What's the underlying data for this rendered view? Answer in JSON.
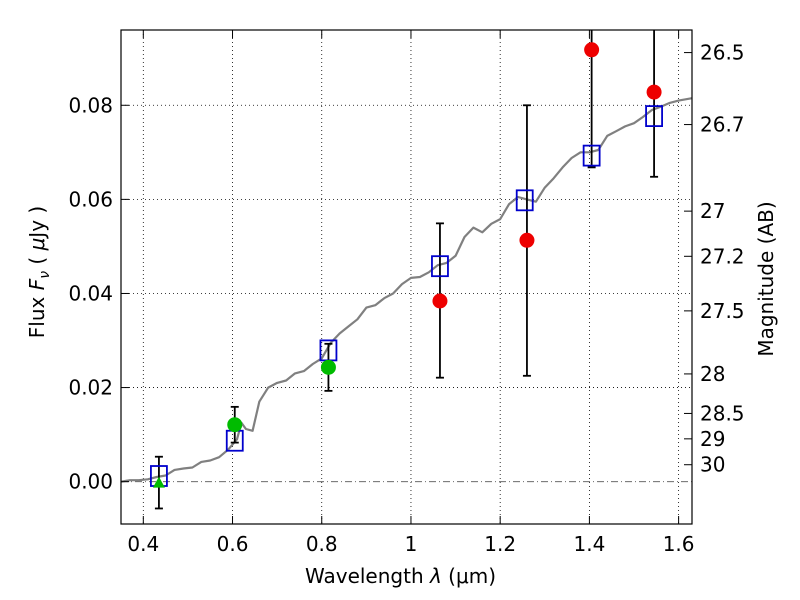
{
  "chart_data": {
    "type": "scatter",
    "xlabel": "Wavelength  λ (μm)",
    "xlabel_parts": {
      "prefix": "Wavelength  ",
      "symbol": "λ",
      "unit": " (μm)"
    },
    "ylabel": "Flux  F_ν  ( μJy )",
    "ylabel_parts": {
      "prefix": "Flux  ",
      "symbol": "F",
      "subscript": "ν",
      "open": "  ( ",
      "mu": "μ",
      "unit": "Jy )"
    },
    "y2label": "Magnitude (AB)",
    "xlim": [
      0.35,
      1.63
    ],
    "ylim": [
      -0.009,
      0.096
    ],
    "grid": true,
    "x_ticks": [
      0.4,
      0.6,
      0.8,
      1.0,
      1.2,
      1.4,
      1.6
    ],
    "x_tick_labels": [
      "0.4",
      "0.6",
      "0.8",
      "1",
      "1.2",
      "1.4",
      "1.6"
    ],
    "y_ticks": [
      0.0,
      0.02,
      0.04,
      0.06,
      0.08
    ],
    "y_tick_labels": [
      "0.00",
      "0.02",
      "0.04",
      "0.06",
      "0.08"
    ],
    "magnitude_ticks": [
      {
        "label": "26.5",
        "flux": 0.0912
      },
      {
        "label": "26.7",
        "flux": 0.0759
      },
      {
        "label": "27",
        "flux": 0.0575
      },
      {
        "label": "27.2",
        "flux": 0.0479
      },
      {
        "label": "27.5",
        "flux": 0.0363
      },
      {
        "label": "28",
        "flux": 0.0229
      },
      {
        "label": "28.5",
        "flux": 0.0145
      },
      {
        "label": "29",
        "flux": 0.0091
      },
      {
        "label": "30",
        "flux": 0.0036
      }
    ],
    "colors": {
      "model": "#808080",
      "model_photometry": "#0000cc",
      "observed_optical": "#00bb00",
      "observed_nir": "#ee0000",
      "errorbar": "#000000",
      "zero_line": "#555555"
    },
    "series": [
      {
        "name": "model spectrum",
        "kind": "line",
        "x": [
          0.35,
          0.37,
          0.39,
          0.41,
          0.43,
          0.45,
          0.47,
          0.49,
          0.51,
          0.53,
          0.55,
          0.57,
          0.59,
          0.61,
          0.62,
          0.63,
          0.645,
          0.66,
          0.68,
          0.7,
          0.72,
          0.74,
          0.76,
          0.78,
          0.8,
          0.82,
          0.84,
          0.86,
          0.88,
          0.9,
          0.92,
          0.94,
          0.96,
          0.98,
          1.0,
          1.02,
          1.04,
          1.06,
          1.08,
          1.1,
          1.12,
          1.14,
          1.16,
          1.18,
          1.2,
          1.22,
          1.24,
          1.26,
          1.28,
          1.3,
          1.32,
          1.34,
          1.36,
          1.38,
          1.4,
          1.42,
          1.44,
          1.46,
          1.48,
          1.5,
          1.52,
          1.54,
          1.56,
          1.58,
          1.6,
          1.63
        ],
        "y": [
          0.0,
          0.0003,
          0.0003,
          0.0005,
          0.001,
          0.0013,
          0.0025,
          0.0028,
          0.003,
          0.0042,
          0.0045,
          0.0052,
          0.0068,
          0.009,
          0.0125,
          0.0112,
          0.0108,
          0.017,
          0.02,
          0.021,
          0.0215,
          0.023,
          0.0235,
          0.025,
          0.0262,
          0.0295,
          0.0315,
          0.033,
          0.0345,
          0.037,
          0.0375,
          0.039,
          0.04,
          0.042,
          0.0433,
          0.0435,
          0.0445,
          0.046,
          0.0465,
          0.048,
          0.052,
          0.054,
          0.053,
          0.0548,
          0.0558,
          0.059,
          0.0605,
          0.06,
          0.0595,
          0.0625,
          0.0645,
          0.0668,
          0.0688,
          0.07,
          0.07,
          0.0705,
          0.0735,
          0.0745,
          0.0755,
          0.0762,
          0.0775,
          0.079,
          0.0797,
          0.0805,
          0.081,
          0.0815
        ]
      },
      {
        "name": "model photometry",
        "kind": "open-square",
        "x": [
          0.435,
          0.605,
          0.815,
          1.065,
          1.255,
          1.405,
          1.545
        ],
        "y": [
          0.0012,
          0.0087,
          0.0279,
          0.0458,
          0.0598,
          0.0693,
          0.0777
        ]
      },
      {
        "name": "observed optical",
        "kind": "filled-circle",
        "x": [
          0.435,
          0.605,
          0.815
        ],
        "y": [
          -0.0002,
          0.0121,
          0.0243
        ],
        "yerr": [
          0.0055,
          0.0038,
          0.005
        ]
      },
      {
        "name": "observed near-infrared",
        "kind": "filled-circle",
        "x": [
          1.065,
          1.26,
          1.405,
          1.545
        ],
        "y": [
          0.0384,
          0.0513,
          0.0918,
          0.0828
        ],
        "yerr_low": [
          0.0163,
          0.0288,
          0.025,
          0.018
        ],
        "yerr_high": [
          0.0165,
          0.0287,
          0.03,
          0.03
        ]
      }
    ]
  }
}
